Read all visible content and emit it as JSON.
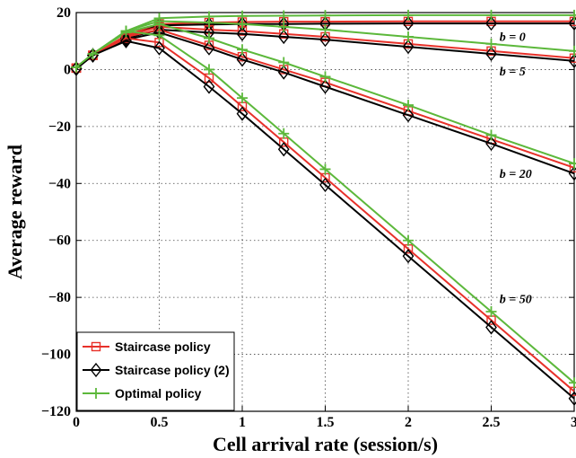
{
  "chart_data": {
    "type": "line",
    "title": "",
    "xlabel": "Cell arrival rate (session/s)",
    "ylabel": "Average reward",
    "xlim": [
      0,
      3
    ],
    "ylim": [
      -120,
      20
    ],
    "xticks": [
      0,
      0.5,
      1,
      1.5,
      2,
      2.5,
      3
    ],
    "xtick_labels": [
      "0",
      "0.5",
      "1",
      "1.5",
      "2",
      "2.5",
      "3"
    ],
    "yticks": [
      -120,
      -100,
      -80,
      -60,
      -40,
      -20,
      0,
      20
    ],
    "ytick_labels": [
      "−120",
      "−100",
      "−80",
      "−60",
      "−40",
      "−20",
      "0",
      "20"
    ],
    "grid": true,
    "legend_position": "bottom-left",
    "x": [
      0,
      0.1,
      0.3,
      0.5,
      0.8,
      1,
      1.25,
      1.5,
      2,
      2.5,
      3
    ],
    "series": [
      {
        "name": "Staircase policy",
        "group": "b = 0",
        "color": "#e8312a",
        "marker": "square",
        "values": [
          0.5,
          5,
          12,
          16,
          16.5,
          16.7,
          16.8,
          16.8,
          16.9,
          16.9,
          16.9
        ]
      },
      {
        "name": "Staircase policy (2)",
        "group": "b = 0",
        "color": "#000000",
        "marker": "diamond",
        "values": [
          0.3,
          5,
          11.5,
          15.5,
          15.8,
          16,
          16,
          16.1,
          16.2,
          16.2,
          16.2
        ]
      },
      {
        "name": "Optimal policy",
        "group": "b = 0",
        "color": "#5cb83b",
        "marker": "plus",
        "values": [
          0.8,
          5.5,
          13.5,
          18,
          18.6,
          18.8,
          18.9,
          19,
          19.1,
          19.1,
          19.1
        ]
      },
      {
        "name": "Staircase policy",
        "group": "b = 5",
        "color": "#e8312a",
        "marker": "square",
        "values": [
          0.5,
          5,
          12,
          15,
          14,
          13.5,
          12.5,
          11.5,
          9,
          6.5,
          4
        ]
      },
      {
        "name": "Staircase policy (2)",
        "group": "b = 5",
        "color": "#000000",
        "marker": "diamond",
        "values": [
          0.3,
          5,
          11,
          14,
          13,
          12.5,
          11.5,
          10.5,
          8,
          5.5,
          3
        ]
      },
      {
        "name": "Optimal policy",
        "group": "b = 5",
        "color": "#5cb83b",
        "marker": "plus",
        "values": [
          0.8,
          5.5,
          13.5,
          17,
          16.5,
          16,
          15,
          14,
          11.5,
          9,
          6.5
        ]
      },
      {
        "name": "Staircase policy",
        "group": "b = 20",
        "color": "#e8312a",
        "marker": "square",
        "values": [
          0.5,
          5,
          11.5,
          14,
          8.5,
          4.5,
          0,
          -4.5,
          -14.5,
          -24.5,
          -34.5
        ]
      },
      {
        "name": "Staircase policy (2)",
        "group": "b = 20",
        "color": "#000000",
        "marker": "diamond",
        "values": [
          0.3,
          5,
          10.5,
          13,
          7.5,
          3.5,
          -1,
          -6,
          -16,
          -26,
          -36.5
        ]
      },
      {
        "name": "Optimal policy",
        "group": "b = 20",
        "color": "#5cb83b",
        "marker": "plus",
        "values": [
          0.8,
          5.5,
          13,
          16,
          11,
          7,
          2.5,
          -2.5,
          -12.5,
          -23,
          -33
        ]
      },
      {
        "name": "Staircase policy",
        "group": "b = 50",
        "color": "#e8312a",
        "marker": "square",
        "values": [
          0.5,
          5,
          11,
          9.5,
          -3,
          -13,
          -25.5,
          -38,
          -63,
          -88,
          -113
        ]
      },
      {
        "name": "Staircase policy (2)",
        "group": "b = 50",
        "color": "#000000",
        "marker": "diamond",
        "values": [
          0.3,
          5,
          10,
          7.5,
          -6,
          -15.5,
          -28,
          -40.5,
          -65.5,
          -90.5,
          -115.5
        ]
      },
      {
        "name": "Optimal policy",
        "group": "b = 50",
        "color": "#5cb83b",
        "marker": "plus",
        "values": [
          0.8,
          5.5,
          13.5,
          12,
          0,
          -10,
          -22.5,
          -35,
          -60,
          -85,
          -110
        ]
      }
    ],
    "annotations": [
      {
        "text": "b = 0",
        "x": 2.55,
        "y": 10
      },
      {
        "text": "b = 5",
        "x": 2.55,
        "y": -2
      },
      {
        "text": "b = 20",
        "x": 2.55,
        "y": -38
      },
      {
        "text": "b = 50",
        "x": 2.55,
        "y": -82
      }
    ],
    "legend": [
      {
        "label": "Staircase policy",
        "color": "#e8312a",
        "marker": "square"
      },
      {
        "label": "Staircase policy (2)",
        "color": "#000000",
        "marker": "diamond"
      },
      {
        "label": "Optimal policy",
        "color": "#5cb83b",
        "marker": "plus"
      }
    ]
  }
}
